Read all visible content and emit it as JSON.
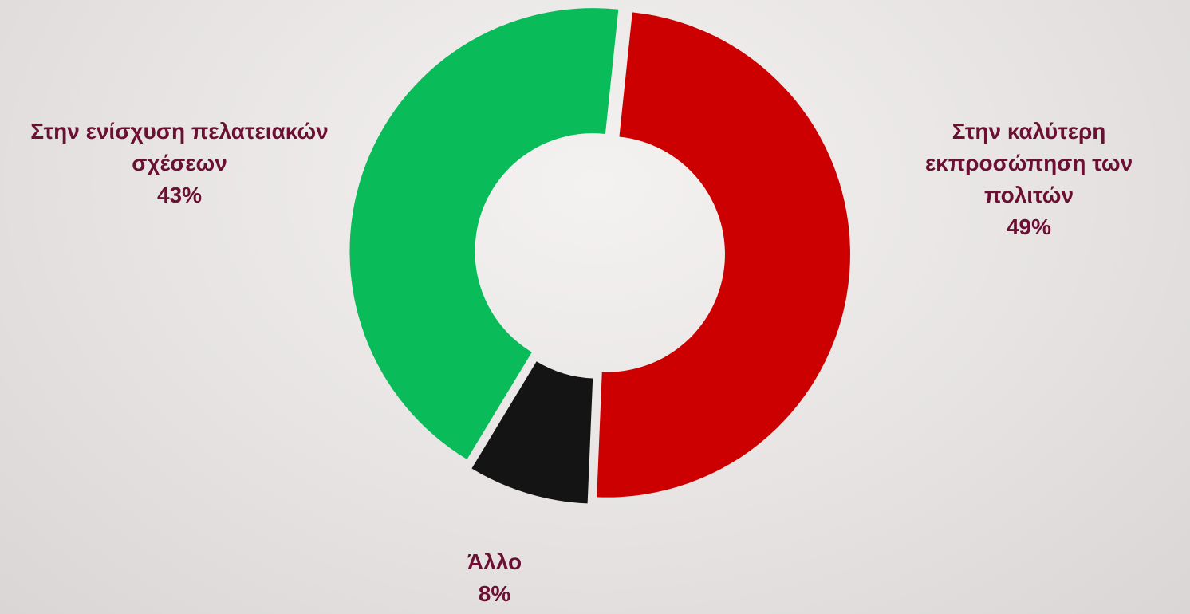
{
  "chart_data": {
    "type": "donut",
    "categories": [
      "Στην καλύτερη εκπροσώπηση των πολιτών",
      "Άλλο",
      "Στην ενίσχυση πελατειακών σχέσεων"
    ],
    "values": [
      49,
      8,
      43
    ],
    "value_labels": [
      "49%",
      "8%",
      "43%"
    ],
    "colors": [
      "#cc0000",
      "#141414",
      "#0abb5a"
    ]
  }
}
